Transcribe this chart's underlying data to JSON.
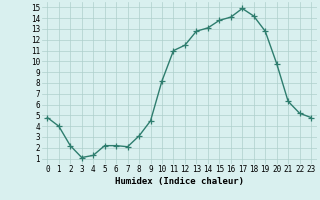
{
  "xlabel": "Humidex (Indice chaleur)",
  "x": [
    0,
    1,
    2,
    3,
    4,
    5,
    6,
    7,
    8,
    9,
    10,
    11,
    12,
    13,
    14,
    15,
    16,
    17,
    18,
    19,
    20,
    21,
    22,
    23
  ],
  "y": [
    4.8,
    4.0,
    2.2,
    1.1,
    1.3,
    2.2,
    2.2,
    2.1,
    3.1,
    4.5,
    8.2,
    11.0,
    11.5,
    12.8,
    13.1,
    13.8,
    14.1,
    14.9,
    14.2,
    12.8,
    9.8,
    6.3,
    5.2,
    4.8
  ],
  "line_color": "#2e7d6e",
  "marker": "+",
  "marker_size": 4,
  "linewidth": 1.0,
  "bg_color": "#d9f0ef",
  "grid_color": "#aecfcc",
  "xlim": [
    -0.5,
    23.5
  ],
  "ylim": [
    0.5,
    15.5
  ],
  "yticks": [
    1,
    2,
    3,
    4,
    5,
    6,
    7,
    8,
    9,
    10,
    11,
    12,
    13,
    14,
    15
  ],
  "xticks": [
    0,
    1,
    2,
    3,
    4,
    5,
    6,
    7,
    8,
    9,
    10,
    11,
    12,
    13,
    14,
    15,
    16,
    17,
    18,
    19,
    20,
    21,
    22,
    23
  ],
  "tick_fontsize": 5.5,
  "label_fontsize": 6.5,
  "label_fontweight": "bold"
}
